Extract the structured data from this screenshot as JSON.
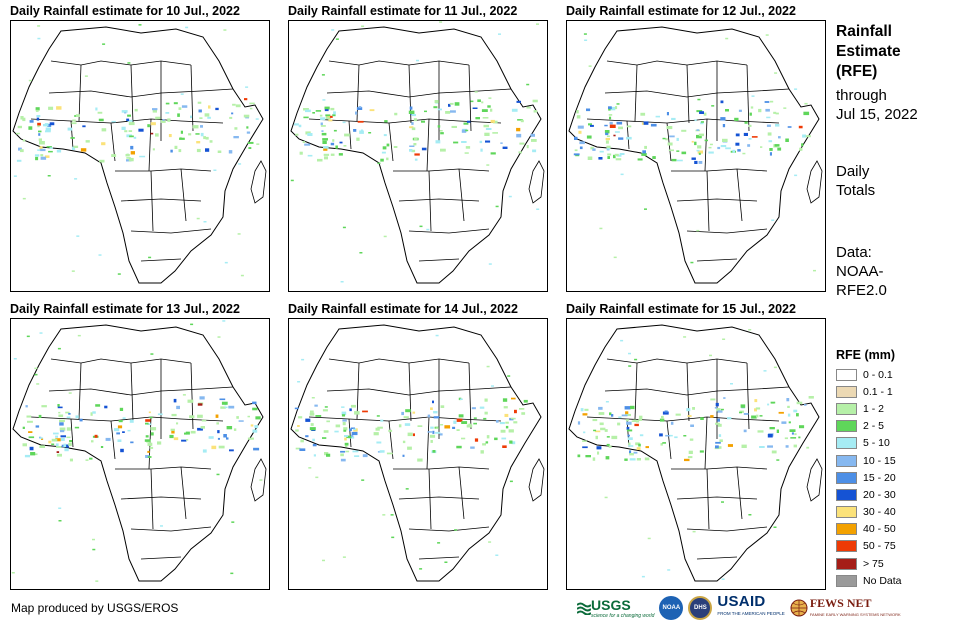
{
  "panels": [
    {
      "title": "Daily Rainfall estimate for 10 Jul., 2022"
    },
    {
      "title": "Daily Rainfall estimate for 11 Jul., 2022"
    },
    {
      "title": "Daily Rainfall estimate for 12 Jul., 2022"
    },
    {
      "title": "Daily Rainfall estimate for 13 Jul., 2022"
    },
    {
      "title": "Daily Rainfall estimate for 14 Jul., 2022"
    },
    {
      "title": "Daily Rainfall estimate for 15 Jul., 2022"
    }
  ],
  "sidebar": {
    "title_lines": [
      "Rainfall",
      "Estimate",
      "(RFE)"
    ],
    "through_label": "through",
    "through_date": "Jul 15, 2022",
    "totals_lines": [
      "Daily",
      "Totals"
    ],
    "data_lines": [
      "Data:",
      "NOAA-",
      "RFE2.0"
    ]
  },
  "legend": {
    "title": "RFE (mm)",
    "items": [
      {
        "label": "0 - 0.1",
        "color": "#ffffff"
      },
      {
        "label": "0.1 - 1",
        "color": "#ecd9b4"
      },
      {
        "label": "1 - 2",
        "color": "#b6f0a8"
      },
      {
        "label": "2 - 5",
        "color": "#5fd65a"
      },
      {
        "label": "5 - 10",
        "color": "#a6ecf4"
      },
      {
        "label": "10 - 15",
        "color": "#86b8f0"
      },
      {
        "label": "15 - 20",
        "color": "#4d8fe6"
      },
      {
        "label": "20 - 30",
        "color": "#1553d4"
      },
      {
        "label": "30 - 40",
        "color": "#fbe27a"
      },
      {
        "label": "40 - 50",
        "color": "#f3a100"
      },
      {
        "label": "50 - 75",
        "color": "#ee3a05"
      },
      {
        "label": "> 75",
        "color": "#a51d17"
      },
      {
        "label": "No Data",
        "color": "#9a9a9a"
      }
    ]
  },
  "credit": "Map produced by USGS/EROS",
  "logos": {
    "usgs": "USGS",
    "usgs_tagline": "science for a changing world",
    "noaa": "NOAA",
    "dhs": "DHS",
    "usaid": "USAID",
    "usaid_tagline": "FROM THE AMERICAN PEOPLE",
    "fews": "FEWS NET",
    "fews_tagline": "FAMINE EARLY WARNING SYSTEMS NETWORK"
  }
}
